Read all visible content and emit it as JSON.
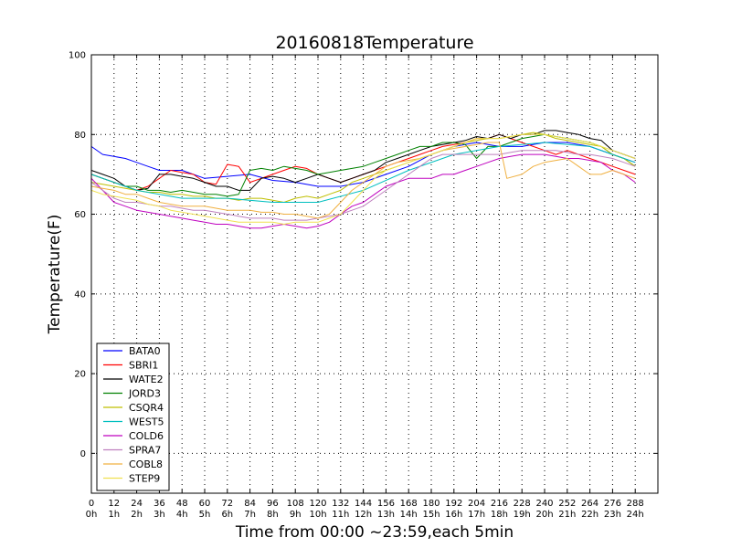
{
  "chart_data": {
    "type": "line",
    "title": "20160818Temperature",
    "xlabel": "Time from 00:00 ~23:59,each 5min",
    "ylabel": "Temperature(F)",
    "xlim": [
      0,
      300
    ],
    "ylim": [
      -10,
      100
    ],
    "grid": true,
    "legend_position": "lower-left",
    "xticks": [
      0,
      12,
      24,
      36,
      48,
      60,
      72,
      84,
      96,
      108,
      120,
      132,
      144,
      156,
      168,
      180,
      192,
      204,
      216,
      228,
      240,
      252,
      264,
      276,
      288
    ],
    "xtick_hours": [
      "0h",
      "1h",
      "2h",
      "3h",
      "4h",
      "5h",
      "6h",
      "7h",
      "8h",
      "9h",
      "10h",
      "11h",
      "12h",
      "13h",
      "14h",
      "15h",
      "16h",
      "17h",
      "18h",
      "19h",
      "20h",
      "21h",
      "22h",
      "23h",
      "24h"
    ],
    "yticks": [
      0,
      20,
      40,
      60,
      80,
      100
    ],
    "series": [
      {
        "name": "BATA0",
        "color": "#0000ff",
        "x": [
          0,
          6,
          12,
          18,
          24,
          30,
          36,
          48,
          60,
          72,
          84,
          96,
          108,
          120,
          132,
          144,
          156,
          168,
          180,
          192,
          204,
          216,
          228,
          240,
          252,
          264,
          276,
          288
        ],
        "values": [
          77,
          75,
          74.5,
          74,
          73,
          72,
          71,
          71,
          69,
          69.5,
          70,
          68.5,
          68,
          67,
          67,
          68,
          70,
          72,
          75,
          77,
          78,
          77,
          77,
          78,
          78,
          77,
          75,
          73
        ]
      },
      {
        "name": "SBRI1",
        "color": "#ff0000",
        "x": [
          0,
          6,
          12,
          18,
          24,
          30,
          36,
          42,
          48,
          54,
          60,
          66,
          72,
          78,
          84,
          90,
          96,
          102,
          108,
          114,
          120,
          126,
          132,
          138,
          144,
          150,
          156,
          162,
          168,
          174,
          180,
          186,
          192,
          198,
          204,
          210,
          216,
          222,
          228,
          234,
          240,
          246,
          252,
          258,
          264,
          270,
          276,
          282,
          288
        ],
        "values": [
          70,
          69,
          68,
          67,
          66,
          67,
          69,
          71,
          70.5,
          70,
          68,
          67.5,
          72.5,
          72,
          68,
          69,
          70,
          71,
          72,
          71.5,
          70,
          69,
          68,
          69,
          70,
          71,
          72,
          73,
          74,
          75,
          76,
          77,
          77.5,
          78,
          79,
          79,
          80,
          79,
          78,
          77,
          76,
          75,
          76,
          75,
          74,
          73,
          72,
          71,
          70
        ]
      },
      {
        "name": "WATE2",
        "color": "#000000",
        "x": [
          0,
          6,
          12,
          18,
          24,
          30,
          36,
          42,
          48,
          54,
          60,
          66,
          72,
          78,
          84,
          90,
          96,
          102,
          108,
          114,
          120,
          126,
          132,
          138,
          144,
          150,
          156,
          162,
          168,
          174,
          180,
          186,
          192,
          198,
          204,
          210,
          216,
          222,
          228,
          234,
          240,
          246,
          252,
          258,
          264,
          270,
          276,
          282,
          288
        ],
        "values": [
          71,
          70,
          69,
          67,
          66,
          66.5,
          70,
          70,
          69.5,
          69,
          68,
          67,
          67,
          66,
          66,
          69,
          69.5,
          69,
          68,
          69,
          70,
          69,
          68,
          69,
          70,
          71,
          73,
          74,
          75,
          76,
          77,
          77.5,
          78,
          78.5,
          79.5,
          79,
          80,
          79,
          80,
          80,
          81,
          81,
          80.5,
          80,
          79,
          78.5,
          76,
          75,
          74
        ]
      },
      {
        "name": "JORD3",
        "color": "#008000",
        "x": [
          0,
          6,
          12,
          18,
          24,
          30,
          36,
          42,
          48,
          54,
          60,
          66,
          72,
          78,
          84,
          90,
          96,
          102,
          108,
          114,
          120,
          126,
          132,
          138,
          144,
          150,
          156,
          162,
          168,
          174,
          180,
          186,
          192,
          198,
          204,
          210,
          216,
          222,
          228,
          234,
          240,
          246,
          252,
          258,
          264,
          270,
          276,
          282,
          288
        ],
        "values": [
          70,
          69,
          68,
          67,
          67,
          66,
          66,
          65.5,
          66,
          65.5,
          65,
          65,
          64.5,
          65,
          71,
          71.5,
          71,
          72,
          71.5,
          71,
          70,
          70.5,
          71,
          71.5,
          72,
          73,
          74,
          75,
          76,
          77,
          77,
          78,
          78,
          77.5,
          74,
          77,
          77,
          78,
          79,
          79.5,
          80,
          79.5,
          79,
          78.5,
          78,
          77,
          75,
          74,
          72
        ]
      },
      {
        "name": "CSQR4",
        "color": "#bfbf00",
        "x": [
          0,
          6,
          12,
          18,
          24,
          30,
          36,
          42,
          48,
          54,
          60,
          66,
          72,
          78,
          84,
          90,
          96,
          102,
          108,
          114,
          120,
          126,
          132,
          138,
          144,
          150,
          156,
          162,
          168,
          174,
          180,
          186,
          192,
          198,
          204,
          210,
          216,
          222,
          228,
          234,
          240,
          246,
          252,
          258,
          264,
          270,
          276,
          282,
          288
        ],
        "values": [
          68,
          67.5,
          67,
          66.5,
          66,
          65.5,
          65.5,
          65,
          65,
          64.5,
          64.5,
          64,
          64,
          63.5,
          64,
          64,
          63.5,
          63,
          64,
          64.5,
          64,
          65,
          66,
          68,
          69,
          70,
          71,
          72,
          73,
          74,
          75,
          76,
          77,
          78,
          78.5,
          79,
          79,
          79.5,
          80,
          80.5,
          80,
          79,
          78.5,
          78,
          77.5,
          77,
          75,
          74,
          72
        ]
      },
      {
        "name": "WEST5",
        "color": "#00bfbf",
        "x": [
          0,
          24,
          48,
          72,
          96,
          120,
          144,
          168,
          192,
          216,
          240,
          264,
          288
        ],
        "values": [
          70,
          66,
          64,
          64,
          63,
          63,
          66,
          71,
          75,
          77,
          78,
          77,
          73
        ]
      },
      {
        "name": "COLD6",
        "color": "#bf00bf",
        "x": [
          0,
          6,
          12,
          18,
          24,
          30,
          36,
          42,
          48,
          54,
          60,
          66,
          72,
          78,
          84,
          90,
          96,
          102,
          108,
          114,
          120,
          126,
          132,
          138,
          144,
          150,
          156,
          162,
          168,
          174,
          180,
          186,
          192,
          198,
          204,
          210,
          216,
          222,
          228,
          234,
          240,
          246,
          252,
          258,
          264,
          270,
          276,
          282,
          288
        ],
        "values": [
          69,
          66,
          63,
          62,
          61,
          60.5,
          60,
          59.5,
          59,
          58.5,
          58,
          57.5,
          57.5,
          57,
          56.5,
          56.5,
          57,
          57.5,
          57,
          56.5,
          57,
          58,
          60,
          62,
          63,
          65,
          67,
          68,
          69,
          69,
          69,
          70,
          70,
          71,
          72,
          73,
          74,
          74.5,
          75,
          75,
          75,
          74.5,
          74,
          74,
          73.5,
          73,
          71,
          70,
          68
        ]
      },
      {
        "name": "SPRA7",
        "color": "#bf80bf",
        "x": [
          0,
          6,
          12,
          18,
          24,
          30,
          36,
          42,
          48,
          54,
          60,
          66,
          72,
          78,
          84,
          90,
          96,
          102,
          108,
          114,
          120,
          126,
          132,
          138,
          144,
          150,
          156,
          162,
          168,
          174,
          180,
          186,
          192,
          198,
          204,
          210,
          216,
          222,
          228,
          234,
          240,
          246,
          252,
          258,
          264,
          270,
          276,
          282,
          288
        ],
        "values": [
          68,
          66,
          64,
          63,
          63,
          62.5,
          62,
          62,
          61.5,
          61,
          61,
          60.5,
          60,
          59.5,
          59,
          59,
          59,
          58.5,
          58.5,
          58.5,
          59,
          59.5,
          60,
          61,
          62,
          64,
          66,
          68,
          70,
          72,
          74,
          75,
          75,
          75,
          75,
          75,
          75,
          75.5,
          76,
          76,
          76,
          76,
          75.5,
          75,
          75,
          74.5,
          74,
          73,
          72
        ]
      },
      {
        "name": "COBL8",
        "color": "#f0b040",
        "x": [
          0,
          6,
          12,
          18,
          24,
          30,
          36,
          42,
          48,
          54,
          60,
          66,
          72,
          78,
          84,
          90,
          96,
          102,
          108,
          114,
          120,
          126,
          132,
          138,
          144,
          150,
          156,
          162,
          168,
          174,
          180,
          186,
          192,
          198,
          204,
          210,
          216,
          220,
          228,
          234,
          240,
          246,
          252,
          258,
          264,
          270,
          276,
          282,
          288
        ],
        "values": [
          67,
          66.5,
          66,
          65,
          65,
          64,
          63,
          62.5,
          62,
          62,
          62,
          61.5,
          61,
          61,
          61,
          60.5,
          60.5,
          60,
          60,
          59.5,
          59,
          60,
          63,
          66,
          68,
          70,
          72,
          73,
          73.5,
          74,
          75,
          76,
          76.5,
          77,
          77.5,
          78,
          78,
          69,
          70,
          72,
          73,
          73.5,
          74,
          72,
          70,
          70,
          71,
          70,
          69
        ]
      },
      {
        "name": "STEP9",
        "color": "#f0e050",
        "x": [
          0,
          6,
          12,
          18,
          24,
          30,
          36,
          42,
          48,
          54,
          60,
          66,
          72,
          78,
          84,
          90,
          96,
          102,
          108,
          114,
          120,
          126,
          132,
          138,
          144,
          150,
          156,
          162,
          168,
          174,
          180,
          186,
          192,
          198,
          204,
          210,
          216,
          222,
          228,
          234,
          240,
          246,
          252,
          258,
          264,
          270,
          276,
          282,
          288
        ],
        "values": [
          66,
          65,
          64.5,
          64,
          63.5,
          62.5,
          62,
          61,
          60.5,
          60,
          59.5,
          59,
          58.5,
          58,
          58,
          58,
          58,
          57.5,
          58,
          58,
          58,
          59,
          60,
          63,
          66,
          69,
          71,
          72,
          73,
          74,
          75,
          76,
          77,
          78,
          79,
          79,
          79,
          79.5,
          80,
          80,
          80,
          79.5,
          79,
          78.5,
          78,
          77,
          76,
          75,
          74
        ]
      }
    ]
  }
}
